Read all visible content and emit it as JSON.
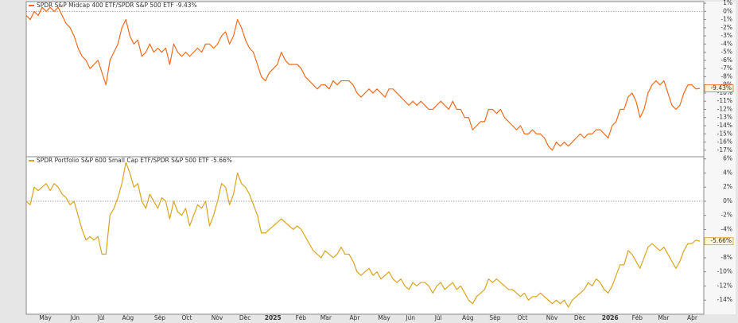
{
  "chart_data": [
    {
      "type": "line",
      "title": "SPDR S&P Midcap 400 ETF/SPDR S&P 500 ETF -9.43%",
      "series": [
        {
          "name": "SPDR S&P Midcap 400 ETF/SPDR S&P 500 ETF -9.43%",
          "color": "#f26a1b",
          "values": [
            -0.5,
            -1,
            0,
            -0.5,
            0.5,
            0,
            0.5,
            0,
            0.5,
            -0.5,
            -1.5,
            -2,
            -3,
            -4.5,
            -5.5,
            -6,
            -7,
            -6.5,
            -6,
            -7.5,
            -9,
            -6,
            -5,
            -4,
            -2,
            -1,
            -3,
            -4,
            -3.5,
            -5.5,
            -5,
            -4,
            -5,
            -4.5,
            -5,
            -4.5,
            -6.5,
            -4,
            -5,
            -5.5,
            -5,
            -5.5,
            -5,
            -4.5,
            -5,
            -4,
            -4,
            -4.5,
            -4,
            -3,
            -2.5,
            -4,
            -3,
            -1,
            -2,
            -3.5,
            -4.5,
            -5,
            -6.5,
            -8,
            -8.5,
            -7.5,
            -7,
            -6.5,
            -5,
            -6,
            -6.5,
            -6.5,
            -6.5,
            -7,
            -8,
            -8.5,
            -9,
            -9.5,
            -9,
            -9,
            -9.5,
            -8.5,
            -9,
            -8.5,
            -8.5,
            -8.5,
            -9,
            -10,
            -10.5,
            -10,
            -9.5,
            -10,
            -9.5,
            -10,
            -10.5,
            -9.5,
            -9.5,
            -10,
            -10.5,
            -11,
            -11.5,
            -11,
            -11.5,
            -11,
            -11.5,
            -12,
            -12,
            -11.5,
            -11,
            -11.5,
            -12,
            -11,
            -12,
            -12,
            -13,
            -13,
            -14.5,
            -14,
            -13.5,
            -13.5,
            -12,
            -12,
            -12.5,
            -12,
            -13,
            -13.5,
            -14,
            -14.5,
            -14,
            -15,
            -15,
            -14.5,
            -15,
            -15,
            -15.5,
            -16.5,
            -17,
            -16,
            -16.5,
            -16,
            -16.5,
            -16,
            -15.5,
            -15,
            -15.5,
            -15,
            -15,
            -14.5,
            -14.5,
            -15,
            -15.5,
            -14,
            -13.5,
            -12,
            -12,
            -10.5,
            -10,
            -11,
            -13,
            -12,
            -10,
            -9,
            -8.5,
            -9,
            -8.5,
            -10,
            -11.5,
            -12,
            -11.5,
            -10,
            -9,
            -9,
            -9.5,
            -9.43
          ],
          "value_labels": [
            null,
            null,
            null,
            null,
            null,
            null,
            null,
            null,
            null,
            null,
            null,
            null,
            null,
            null,
            null,
            null,
            null,
            null,
            null,
            null,
            null,
            null,
            null,
            null,
            null,
            null,
            null,
            null,
            null,
            null,
            null,
            null,
            null,
            null,
            null,
            null,
            null,
            null,
            null,
            null,
            null,
            null,
            null,
            null,
            null,
            null,
            null,
            null,
            null,
            null,
            null,
            null,
            null,
            null,
            null,
            null,
            null,
            null,
            null,
            null,
            null,
            null,
            null,
            null,
            null,
            null,
            null,
            null,
            null,
            null,
            null,
            null,
            null,
            null,
            null,
            null,
            null,
            null,
            null,
            null,
            null,
            null,
            null,
            null,
            null,
            null,
            null,
            null,
            null,
            null,
            null,
            null,
            null,
            null,
            null,
            null,
            null,
            null,
            null,
            null,
            null,
            null,
            null,
            null,
            null,
            null,
            null,
            null,
            null,
            null,
            null,
            null,
            null,
            null,
            null,
            null,
            null,
            null,
            null,
            null,
            null,
            null,
            null,
            null,
            null,
            null,
            null,
            null,
            null,
            null,
            null,
            null,
            null,
            null,
            null,
            null,
            null,
            null,
            null,
            null,
            null,
            null,
            null,
            null,
            null,
            null,
            null,
            null,
            null,
            null,
            null,
            null,
            null,
            null,
            null,
            null,
            null,
            null,
            null,
            null,
            null,
            null,
            null,
            null,
            null,
            null,
            null,
            null,
            null,
            "-9.43%"
          ]
        }
      ],
      "xlim": [
        0,
        169
      ],
      "ylim": [
        -17.8,
        1.2
      ],
      "zero_line": true,
      "yticks": [
        {
          "value": 1,
          "label": "1%"
        },
        {
          "value": 0,
          "label": "0%"
        },
        {
          "value": -1,
          "label": "-1%"
        },
        {
          "value": -2,
          "label": "-2%"
        },
        {
          "value": -3,
          "label": "-3%"
        },
        {
          "value": -4,
          "label": "-4%"
        },
        {
          "value": -5,
          "label": "-5%"
        },
        {
          "value": -6,
          "label": "-6%"
        },
        {
          "value": -7,
          "label": "-7%"
        },
        {
          "value": -8,
          "label": "-8%"
        },
        {
          "value": -9,
          "label": "-9%"
        },
        {
          "value": -10,
          "label": "-10%"
        },
        {
          "value": -11,
          "label": "-11%"
        },
        {
          "value": -12,
          "label": "-12%"
        },
        {
          "value": -13,
          "label": "-13%"
        },
        {
          "value": -14,
          "label": "-14%"
        },
        {
          "value": -15,
          "label": "-15%"
        },
        {
          "value": -16,
          "label": "-16%"
        },
        {
          "value": -17,
          "label": "-17%"
        }
      ]
    },
    {
      "type": "line",
      "title": "SPDR Portfolio S&P 600 Small Cap ETF/SPDR S&P 500 ETF -5.66%",
      "series": [
        {
          "name": "SPDR Portfolio S&P 600 Small Cap ETF/SPDR S&P 500 ETF -5.66%",
          "color": "#d9a520",
          "values": [
            0,
            -0.5,
            2,
            1.5,
            2,
            2.5,
            1.5,
            2.5,
            2,
            1,
            0.5,
            -0.5,
            0,
            -2,
            -4,
            -5.5,
            -5,
            -5.5,
            -5,
            -7.5,
            -7.5,
            -2,
            -1,
            0.5,
            2.5,
            5.5,
            4,
            2,
            2.5,
            0,
            -1,
            1,
            0,
            -1,
            0.5,
            0,
            -2.5,
            0,
            -1.5,
            -2,
            -1,
            -3.5,
            -2,
            -0.5,
            -1,
            0,
            -3.5,
            -2,
            0,
            2.5,
            2,
            -0.5,
            1,
            4,
            2.5,
            2,
            1,
            -0.5,
            -2,
            -4.5,
            -4.5,
            -4,
            -3.5,
            -3,
            -2.5,
            -3,
            -3.5,
            -4,
            -3.5,
            -4,
            -5,
            -6,
            -7,
            -7.5,
            -8,
            -7,
            -7.5,
            -8,
            -7.5,
            -6.5,
            -7.5,
            -7.5,
            -8.5,
            -10,
            -10.5,
            -10,
            -9.5,
            -10.5,
            -10,
            -11,
            -10.5,
            -10,
            -11,
            -11.5,
            -11,
            -12,
            -12.5,
            -11.5,
            -12,
            -11.5,
            -11.5,
            -12,
            -13,
            -12,
            -11.5,
            -12.5,
            -12,
            -11.5,
            -12.5,
            -12,
            -13,
            -14,
            -14.5,
            -13.5,
            -13,
            -12.5,
            -11,
            -11.5,
            -11,
            -11.5,
            -12,
            -12.5,
            -12.5,
            -13,
            -13.5,
            -13,
            -14,
            -13.5,
            -13.5,
            -13,
            -13.5,
            -14,
            -14.5,
            -14,
            -14.5,
            -14,
            -15,
            -14,
            -13.5,
            -13,
            -12.5,
            -11.5,
            -12,
            -11,
            -11.5,
            -12.5,
            -13,
            -12,
            -10.5,
            -9,
            -9,
            -7,
            -7.5,
            -8.5,
            -9.5,
            -8,
            -6.5,
            -6,
            -6.5,
            -7,
            -6.5,
            -7.5,
            -8.5,
            -9.5,
            -8.5,
            -7,
            -6,
            -6,
            -5.5,
            -5.66
          ],
          "value_labels": [
            null,
            null,
            null,
            null,
            null,
            null,
            null,
            null,
            null,
            null,
            null,
            null,
            null,
            null,
            null,
            null,
            null,
            null,
            null,
            null,
            null,
            null,
            null,
            null,
            null,
            null,
            null,
            null,
            null,
            null,
            null,
            null,
            null,
            null,
            null,
            null,
            null,
            null,
            null,
            null,
            null,
            null,
            null,
            null,
            null,
            null,
            null,
            null,
            null,
            null,
            null,
            null,
            null,
            null,
            null,
            null,
            null,
            null,
            null,
            null,
            null,
            null,
            null,
            null,
            null,
            null,
            null,
            null,
            null,
            null,
            null,
            null,
            null,
            null,
            null,
            null,
            null,
            null,
            null,
            null,
            null,
            null,
            null,
            null,
            null,
            null,
            null,
            null,
            null,
            null,
            null,
            null,
            null,
            null,
            null,
            null,
            null,
            null,
            null,
            null,
            null,
            null,
            null,
            null,
            null,
            null,
            null,
            null,
            null,
            null,
            null,
            null,
            null,
            null,
            null,
            null,
            null,
            null,
            null,
            null,
            null,
            null,
            null,
            null,
            null,
            null,
            null,
            null,
            null,
            null,
            null,
            null,
            null,
            null,
            null,
            null,
            null,
            null,
            null,
            null,
            null,
            null,
            null,
            null,
            null,
            null,
            null,
            null,
            null,
            null,
            null,
            null,
            null,
            null,
            null,
            null,
            null,
            null,
            null,
            null,
            null,
            null,
            null,
            null,
            null,
            null,
            null,
            null,
            null,
            "-5.66%"
          ]
        }
      ],
      "xlim": [
        0,
        169
      ],
      "ylim": [
        -16,
        6.3
      ],
      "zero_line": true,
      "yticks": [
        {
          "value": 6,
          "label": "6%"
        },
        {
          "value": 4,
          "label": "4%"
        },
        {
          "value": 2,
          "label": "2%"
        },
        {
          "value": 0,
          "label": "0%"
        },
        {
          "value": -2,
          "label": "-2%"
        },
        {
          "value": -4,
          "label": "-4%"
        },
        {
          "value": -6,
          "label": "-6%"
        },
        {
          "value": -8,
          "label": "-8%"
        },
        {
          "value": -10,
          "label": "-10%"
        },
        {
          "value": -12,
          "label": "-12%"
        },
        {
          "value": -14,
          "label": "-14%"
        }
      ],
      "xticks": [
        {
          "value": 4.8,
          "label": "May"
        },
        {
          "value": 12.2,
          "label": "Jun"
        },
        {
          "value": 18.8,
          "label": "Jul"
        },
        {
          "value": 25.5,
          "label": "Aug"
        },
        {
          "value": 33.5,
          "label": "Sep"
        },
        {
          "value": 40.3,
          "label": "Oct"
        },
        {
          "value": 47.9,
          "label": "Nov"
        },
        {
          "value": 54.9,
          "label": "Dec"
        },
        {
          "value": 61.9,
          "label": "2025"
        },
        {
          "value": 68.9,
          "label": "Feb"
        },
        {
          "value": 75.2,
          "label": "Mar"
        },
        {
          "value": 82.4,
          "label": "Apr"
        },
        {
          "value": 89.8,
          "label": "May"
        },
        {
          "value": 96.4,
          "label": "Jun"
        },
        {
          "value": 103.4,
          "label": "Jul"
        },
        {
          "value": 110.8,
          "label": "Aug"
        },
        {
          "value": 117.6,
          "label": "Sep"
        },
        {
          "value": 124.5,
          "label": "Oct"
        },
        {
          "value": 131.9,
          "label": "Nov"
        },
        {
          "value": 138.9,
          "label": "Dec"
        },
        {
          "value": 146.5,
          "label": "2026"
        },
        {
          "value": 153.3,
          "label": "Feb"
        },
        {
          "value": 159.9,
          "label": "Mar"
        },
        {
          "value": 167.1,
          "label": "Apr"
        }
      ]
    }
  ]
}
